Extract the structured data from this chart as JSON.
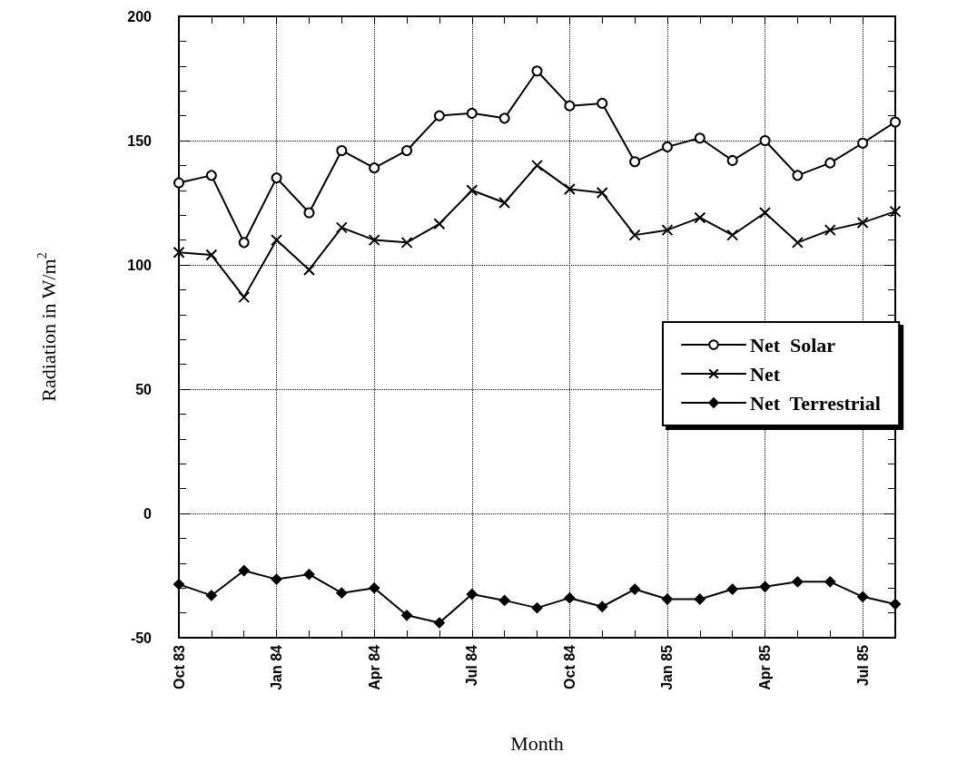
{
  "chart_data": {
    "type": "line",
    "xlabel": "Month",
    "ylabel": "Radiation in W/m$^{2}$",
    "categories": [
      "Oct 83",
      null,
      null,
      "Jan 84",
      null,
      null,
      "Apr 84",
      null,
      null,
      "Jul 84",
      null,
      null,
      "Oct 84",
      null,
      null,
      "Jan 85",
      null,
      null,
      "Apr 85",
      null,
      null,
      "Jul 85",
      null
    ],
    "series": [
      {
        "name": "Net  Solar",
        "color": "#000000",
        "marker": "circle",
        "values": [
          133,
          136,
          109,
          135,
          121,
          146,
          139,
          146,
          160,
          161,
          159,
          178,
          164,
          165,
          141.5,
          147.5,
          151,
          142,
          150,
          136,
          141,
          149,
          157.5
        ]
      },
      {
        "name": "Net",
        "color": "#000000",
        "marker": "cross",
        "values": [
          105,
          104,
          87,
          110,
          98,
          115,
          110,
          109,
          116.5,
          130,
          125,
          140,
          130.5,
          129,
          112,
          114,
          119,
          112,
          121,
          109,
          114,
          117,
          121.5
        ]
      },
      {
        "name": "Net  Terrestrial",
        "color": "#000000",
        "marker": "diamond",
        "values": [
          -28.5,
          -33,
          -23,
          -26.5,
          -24.5,
          -32,
          -30,
          -41,
          -44,
          -32.5,
          -35,
          -38,
          -34,
          -37.5,
          -30.5,
          -34.5,
          -34.5,
          -30.5,
          -29.5,
          -27.5,
          -27.5,
          -33.5,
          -36.5
        ]
      }
    ],
    "ylim": [
      -50,
      200
    ],
    "yticks": [
      -50,
      0,
      50,
      100,
      150,
      200
    ],
    "grid": true,
    "legend": "right",
    "line_style": "solid"
  }
}
